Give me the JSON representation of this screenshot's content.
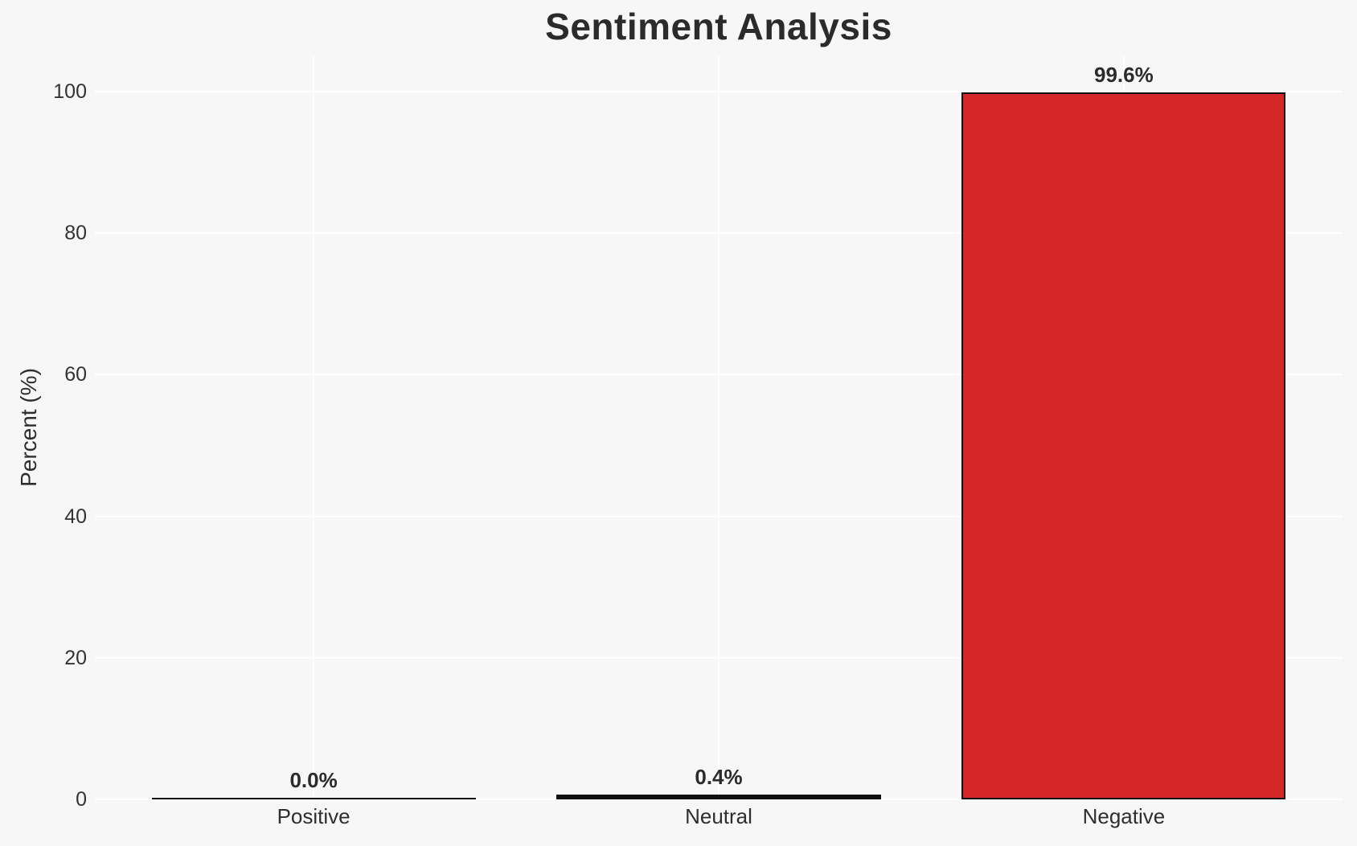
{
  "chart_data": {
    "type": "bar",
    "title": "Sentiment Analysis",
    "xlabel": "",
    "ylabel": "Percent (%)",
    "categories": [
      "Positive",
      "Neutral",
      "Negative"
    ],
    "values": [
      0.0,
      0.4,
      99.6
    ],
    "value_labels": [
      "0.0%",
      "0.4%",
      "99.6%"
    ],
    "yticks": [
      0,
      20,
      40,
      60,
      80,
      100
    ],
    "ylim": [
      0,
      105
    ],
    "grid": "horizontal and vertical white gridlines, no axis spines, no tick marks",
    "legend_position": "none",
    "bar_fill_colors": [
      null,
      null,
      "#d62728"
    ],
    "colors": {
      "background": "#f7f7f7",
      "gridline": "#ffffff",
      "negative_bar_fill": "#d62728",
      "bar_edge": "#111111",
      "text": "#2b2b2b"
    }
  }
}
